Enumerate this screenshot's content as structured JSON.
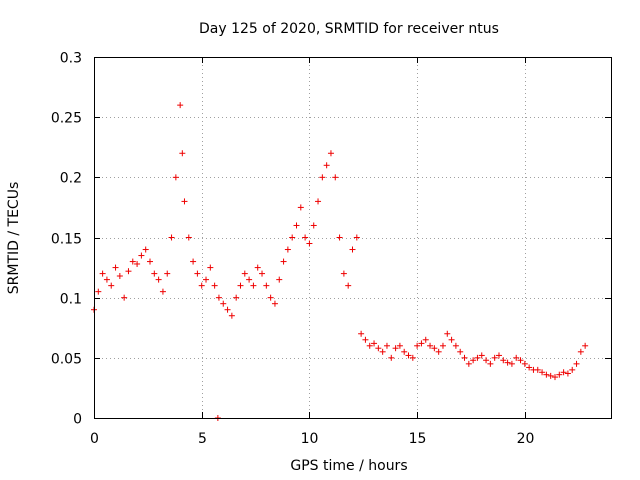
{
  "chart_data": {
    "type": "scatter",
    "title": "Day 125 of 2020, SRMTID for receiver ntus",
    "xlabel": "GPS time / hours",
    "ylabel": "SRMTID / TECUs",
    "xlim": [
      0,
      24
    ],
    "ylim": [
      0,
      0.3
    ],
    "xticks": [
      0,
      5,
      10,
      15,
      20
    ],
    "xtick_labels": [
      "0",
      "5",
      "10",
      "15",
      "20"
    ],
    "yticks": [
      0,
      0.05,
      0.1,
      0.15,
      0.2,
      0.25,
      0.3
    ],
    "ytick_labels": [
      "0",
      "0.05",
      "0.1",
      "0.15",
      "0.2",
      "0.25",
      "0.3"
    ],
    "grid": true,
    "marker": "+",
    "series_color": "#ee0000",
    "series": [
      {
        "name": "SRMTID",
        "x": [
          0.0,
          0.2,
          0.4,
          0.6,
          0.8,
          1.0,
          1.2,
          1.4,
          1.6,
          1.8,
          2.0,
          2.2,
          2.4,
          2.6,
          2.8,
          3.0,
          3.2,
          3.4,
          3.6,
          3.8,
          4.0,
          4.1,
          4.2,
          4.4,
          4.6,
          4.8,
          5.0,
          5.2,
          5.4,
          5.6,
          5.8,
          6.0,
          6.2,
          6.4,
          6.6,
          6.8,
          7.0,
          7.2,
          7.4,
          7.6,
          7.8,
          8.0,
          8.2,
          8.4,
          8.6,
          8.8,
          9.0,
          9.2,
          9.4,
          9.6,
          9.8,
          10.0,
          10.2,
          10.4,
          10.6,
          10.8,
          11.0,
          11.2,
          11.4,
          11.6,
          11.8,
          12.0,
          12.2,
          12.4,
          12.6,
          12.8,
          13.0,
          13.2,
          13.4,
          13.6,
          13.8,
          14.0,
          14.2,
          14.4,
          14.6,
          14.8,
          15.0,
          15.2,
          15.4,
          15.6,
          15.8,
          16.0,
          16.2,
          16.4,
          16.6,
          16.8,
          17.0,
          17.2,
          17.4,
          17.6,
          17.8,
          18.0,
          18.2,
          18.4,
          18.6,
          18.8,
          19.0,
          19.2,
          19.4,
          19.6,
          19.8,
          20.0,
          20.2,
          20.4,
          20.6,
          20.8,
          21.0,
          21.2,
          21.4,
          21.6,
          21.8,
          22.0,
          22.2,
          22.4,
          22.6,
          22.8,
          5.75
        ],
        "y": [
          0.09,
          0.105,
          0.12,
          0.115,
          0.11,
          0.125,
          0.118,
          0.1,
          0.122,
          0.13,
          0.128,
          0.135,
          0.14,
          0.13,
          0.12,
          0.115,
          0.105,
          0.12,
          0.15,
          0.2,
          0.26,
          0.22,
          0.18,
          0.15,
          0.13,
          0.12,
          0.11,
          0.115,
          0.125,
          0.11,
          0.1,
          0.095,
          0.09,
          0.085,
          0.1,
          0.11,
          0.12,
          0.115,
          0.11,
          0.125,
          0.12,
          0.11,
          0.1,
          0.095,
          0.115,
          0.13,
          0.14,
          0.15,
          0.16,
          0.175,
          0.15,
          0.145,
          0.16,
          0.18,
          0.2,
          0.21,
          0.22,
          0.2,
          0.15,
          0.12,
          0.11,
          0.14,
          0.15,
          0.07,
          0.065,
          0.06,
          0.062,
          0.058,
          0.055,
          0.06,
          0.05,
          0.058,
          0.06,
          0.055,
          0.052,
          0.05,
          0.06,
          0.062,
          0.065,
          0.06,
          0.058,
          0.055,
          0.06,
          0.07,
          0.065,
          0.06,
          0.055,
          0.05,
          0.045,
          0.048,
          0.05,
          0.052,
          0.048,
          0.045,
          0.05,
          0.052,
          0.048,
          0.046,
          0.045,
          0.05,
          0.048,
          0.045,
          0.042,
          0.04,
          0.04,
          0.038,
          0.036,
          0.035,
          0.034,
          0.036,
          0.038,
          0.037,
          0.04,
          0.045,
          0.055,
          0.06,
          0.0
        ]
      }
    ]
  }
}
